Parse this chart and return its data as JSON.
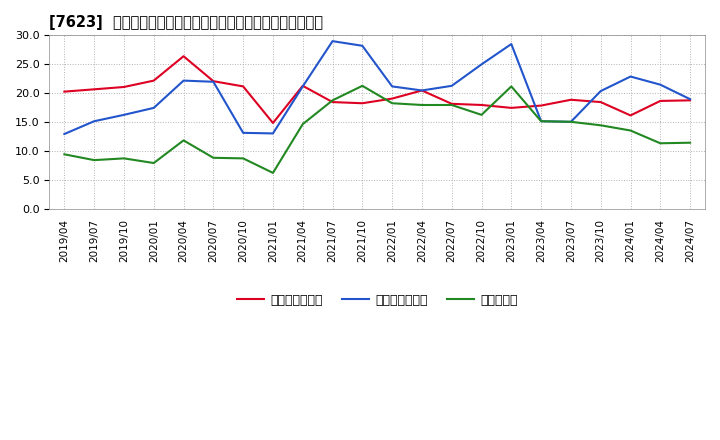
{
  "title": "[7623]  売上債権回転率、買入債務回転率、在庫回転率の推移",
  "x_labels": [
    "2019/04",
    "2019/07",
    "2019/10",
    "2020/01",
    "2020/04",
    "2020/07",
    "2020/10",
    "2021/01",
    "2021/04",
    "2021/07",
    "2021/10",
    "2022/01",
    "2022/04",
    "2022/07",
    "2022/10",
    "2023/01",
    "2023/04",
    "2023/07",
    "2023/10",
    "2024/01",
    "2024/04",
    "2024/07"
  ],
  "uriage": [
    20.3,
    20.7,
    21.1,
    22.2,
    26.4,
    22.1,
    21.2,
    14.9,
    21.3,
    18.5,
    18.3,
    19.1,
    20.5,
    18.2,
    18.0,
    17.5,
    17.9,
    18.9,
    18.5,
    16.2,
    18.7,
    18.8
  ],
  "kaiire": [
    13.0,
    15.2,
    16.3,
    17.5,
    22.2,
    22.0,
    13.2,
    13.1,
    21.2,
    29.0,
    28.2,
    21.2,
    20.5,
    21.3,
    25.0,
    28.5,
    15.2,
    15.1,
    20.4,
    22.9,
    21.5,
    19.0
  ],
  "zaiko": [
    9.5,
    8.5,
    8.8,
    8.0,
    11.9,
    8.9,
    8.8,
    6.3,
    14.7,
    18.8,
    21.3,
    18.3,
    18.0,
    18.0,
    16.3,
    21.2,
    15.2,
    15.1,
    14.5,
    13.6,
    11.4,
    11.5
  ],
  "color_red": "#dd0022",
  "color_blue": "#2255cc",
  "color_green": "#228822",
  "ylim": [
    0.0,
    30.0
  ],
  "yticks": [
    0.0,
    5.0,
    10.0,
    15.0,
    20.0,
    25.0,
    30.0
  ],
  "legend_labels": [
    "売上債権回転率",
    "買入債務回転率",
    "在庫回転率"
  ],
  "background_color": "#ffffff",
  "grid_color": "#aaaaaa"
}
